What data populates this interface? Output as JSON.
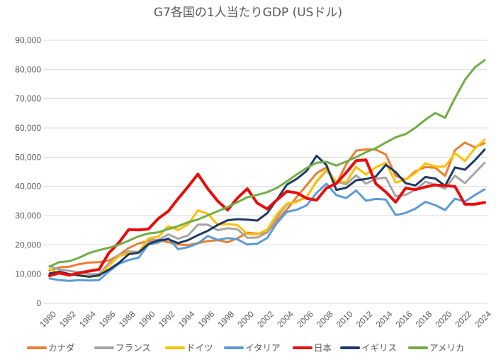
{
  "chart_data": {
    "type": "line",
    "title": "G7各国の1人当たりGDP (USドル)",
    "xlabel": "",
    "ylabel": "",
    "ylim": [
      0,
      90000
    ],
    "yticks": [
      "0",
      "10,000",
      "20,000",
      "30,000",
      "40,000",
      "50,000",
      "60,000",
      "70,000",
      "80,000",
      "90,000"
    ],
    "grid": true,
    "legend_position": "bottom",
    "x": [
      1980,
      1981,
      1982,
      1983,
      1984,
      1985,
      1986,
      1987,
      1988,
      1989,
      1990,
      1991,
      1992,
      1993,
      1994,
      1995,
      1996,
      1997,
      1998,
      1999,
      2000,
      2001,
      2002,
      2003,
      2004,
      2005,
      2006,
      2007,
      2008,
      2009,
      2010,
      2011,
      2012,
      2013,
      2014,
      2015,
      2016,
      2017,
      2018,
      2019,
      2020,
      2021,
      2022,
      2023,
      2024
    ],
    "xticks": [
      "1980",
      "1982",
      "1984",
      "1986",
      "1988",
      "1990",
      "1992",
      "1994",
      "1996",
      "1998",
      "2000",
      "2002",
      "2004",
      "2006",
      "2008",
      "2010",
      "2012",
      "2014",
      "2016",
      "2018",
      "2020",
      "2022",
      "2024"
    ],
    "series": [
      {
        "name": "カナダ",
        "color": "#ed7d31",
        "values": [
          11200,
          12300,
          12500,
          13400,
          13900,
          14100,
          14600,
          16500,
          18900,
          20500,
          21300,
          21600,
          20900,
          20100,
          19900,
          20600,
          21300,
          21600,
          20900,
          22200,
          24200,
          23800,
          24200,
          28300,
          32100,
          36400,
          40400,
          44500,
          46500,
          40800,
          47600,
          52200,
          52700,
          52600,
          50900,
          43600,
          42300,
          45200,
          46600,
          46400,
          43600,
          52400,
          55000,
          53400,
          54800
        ]
      },
      {
        "name": "フランス",
        "color": "#a5a5a5",
        "values": [
          12700,
          11500,
          11100,
          10600,
          10000,
          10000,
          13700,
          16500,
          17700,
          17600,
          21800,
          21700,
          23600,
          22100,
          23200,
          26900,
          26900,
          25000,
          25700,
          25300,
          22400,
          22500,
          24200,
          29500,
          33800,
          34900,
          36500,
          41600,
          45400,
          41600,
          40700,
          43800,
          40900,
          42600,
          43000,
          36600,
          37100,
          38800,
          41600,
          40600,
          39200,
          43700,
          41100,
          44600,
          48100
        ]
      },
      {
        "name": "ドイツ",
        "color": "#ffc000",
        "values": [
          11700,
          10100,
          9800,
          9700,
          9100,
          9300,
          12900,
          16100,
          17100,
          17300,
          22200,
          22800,
          26400,
          25100,
          27000,
          31800,
          30600,
          26900,
          27100,
          26800,
          23700,
          23600,
          25200,
          30500,
          34100,
          34700,
          36400,
          41800,
          45700,
          41700,
          41500,
          46700,
          44000,
          46600,
          48100,
          41300,
          42300,
          44600,
          47900,
          46800,
          46800,
          51400,
          48700,
          52900,
          56000
        ]
      },
      {
        "name": "イタリア",
        "color": "#5b9bd5",
        "values": [
          8500,
          7900,
          7700,
          7900,
          7800,
          7900,
          10900,
          13500,
          14800,
          15600,
          20100,
          20800,
          22300,
          18500,
          19200,
          20500,
          23000,
          21700,
          22300,
          21900,
          20100,
          20400,
          22300,
          27500,
          31300,
          32000,
          33500,
          37800,
          40900,
          37000,
          36000,
          38600,
          35100,
          35700,
          35500,
          30200,
          30900,
          32400,
          34700,
          33600,
          31900,
          35800,
          34800,
          37000,
          39000
        ]
      },
      {
        "name": "日本",
        "color": "#e80d0d",
        "values": [
          9400,
          10400,
          9600,
          10400,
          11000,
          11600,
          17200,
          20700,
          25200,
          25100,
          25400,
          29000,
          31500,
          35800,
          39900,
          44200,
          39200,
          35000,
          31900,
          36000,
          39200,
          34300,
          32300,
          35400,
          38300,
          37800,
          35900,
          35300,
          39400,
          41000,
          44700,
          48800,
          49100,
          40900,
          38100,
          34600,
          39400,
          38900,
          39800,
          40500,
          40200,
          40000,
          33900,
          33900,
          34500
        ]
      },
      {
        "name": "イギリス",
        "color": "#1f3864",
        "values": [
          10200,
          10800,
          10000,
          9500,
          9100,
          9600,
          11500,
          13800,
          16800,
          17300,
          20300,
          21500,
          21900,
          20600,
          21600,
          23300,
          24800,
          26800,
          28400,
          28800,
          28600,
          28300,
          30800,
          35600,
          40600,
          42600,
          45300,
          50500,
          47300,
          38800,
          39500,
          42100,
          42500,
          43400,
          47400,
          44900,
          41100,
          40300,
          43200,
          42700,
          40200,
          46500,
          45700,
          48900,
          52600
        ]
      },
      {
        "name": "アメリカ",
        "color": "#70ad47",
        "values": [
          12600,
          14100,
          14400,
          15600,
          17200,
          18200,
          19000,
          20000,
          21400,
          22900,
          23900,
          24300,
          25400,
          26400,
          27700,
          28700,
          30100,
          31500,
          32900,
          34600,
          36300,
          37100,
          38000,
          39500,
          41700,
          44100,
          46300,
          48100,
          48400,
          47100,
          48500,
          50000,
          51700,
          53100,
          55000,
          56800,
          57900,
          60100,
          62800,
          65100,
          63500,
          70200,
          76400,
          80700,
          83200
        ]
      }
    ]
  }
}
